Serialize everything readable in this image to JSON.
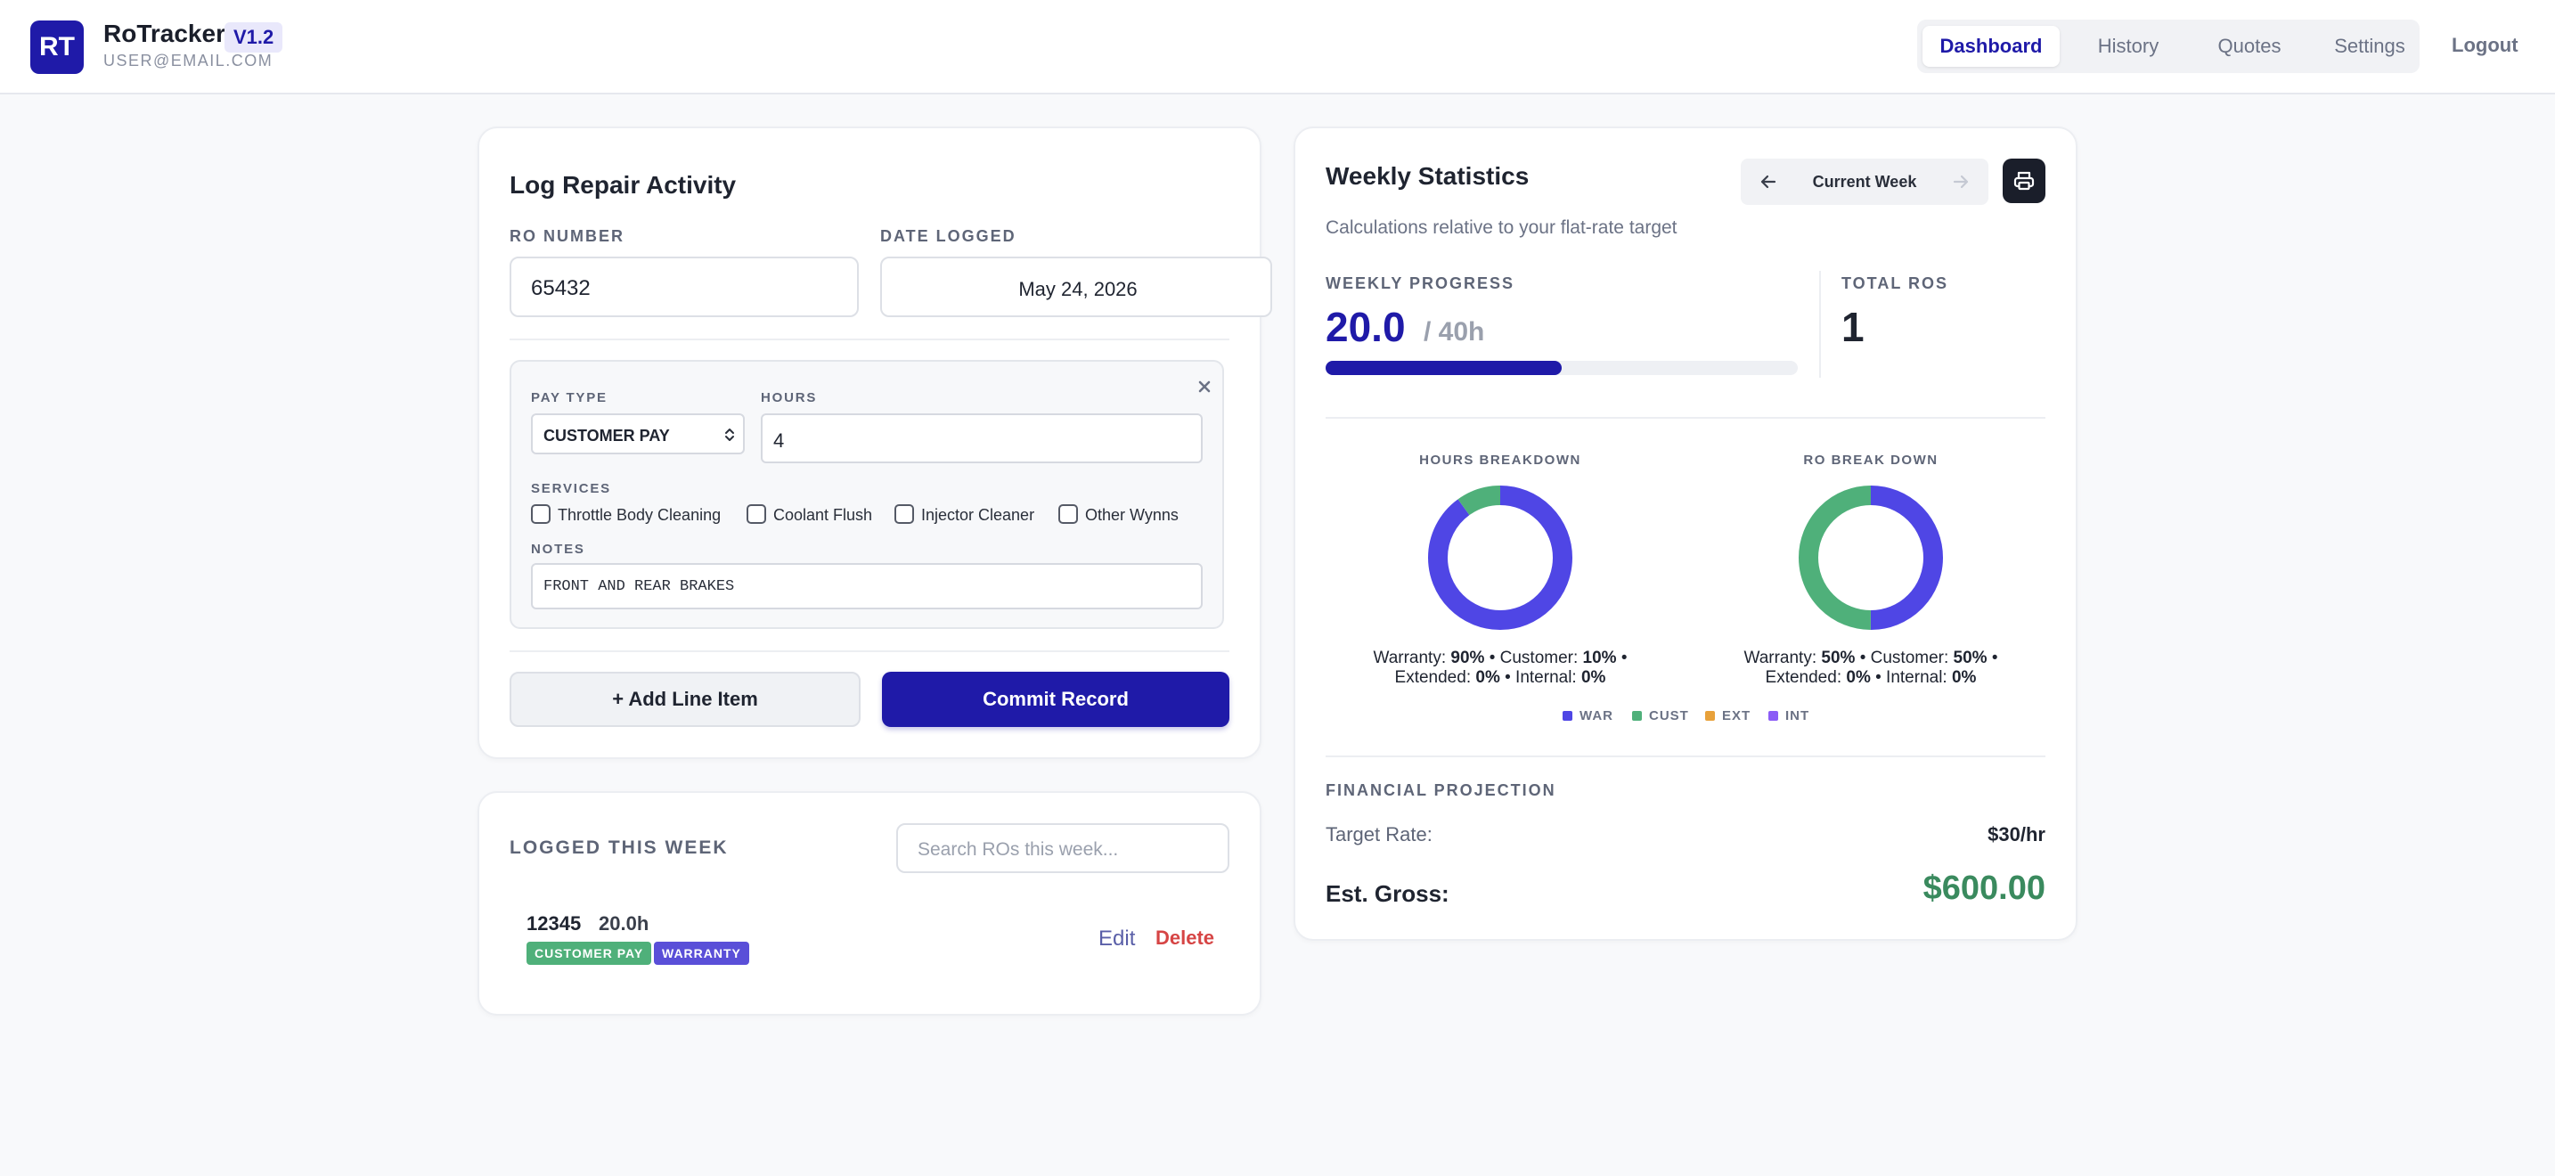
{
  "header": {
    "logo_text": "RT",
    "app_name": "RoTracker",
    "version": "V1.2",
    "user_email": "USER@EMAIL.COM",
    "nav": [
      "Dashboard",
      "History",
      "Quotes",
      "Settings"
    ],
    "active_tab": "Dashboard",
    "logout": "Logout"
  },
  "log_form": {
    "title": "Log Repair Activity",
    "ro_number_label": "RO NUMBER",
    "ro_number_value": "65432",
    "date_label": "DATE LOGGED",
    "date_value": "May 24, 2026",
    "line_item": {
      "pay_type_label": "PAY TYPE",
      "pay_type_value": "CUSTOMER PAY",
      "hours_label": "HOURS",
      "hours_value": "4",
      "services_label": "SERVICES",
      "services": [
        "Throttle Body Cleaning",
        "Coolant Flush",
        "Injector Cleaner",
        "Other Wynns"
      ],
      "notes_label": "NOTES",
      "notes_value": "FRONT AND REAR BRAKES"
    },
    "add_line_label": "+ Add Line Item",
    "commit_label": "Commit Record"
  },
  "logged": {
    "title": "LOGGED THIS WEEK",
    "search_placeholder": "Search ROs this week...",
    "entries": [
      {
        "ro": "12345",
        "hours": "20.0h",
        "badges": [
          "CUSTOMER PAY",
          "WARRANTY"
        ],
        "edit": "Edit",
        "delete": "Delete"
      }
    ]
  },
  "stats": {
    "title": "Weekly Statistics",
    "week_label": "Current Week",
    "subtitle": "Calculations relative to your flat-rate target",
    "progress_label": "WEEKLY PROGRESS",
    "progress_value": "20.0",
    "progress_target": "/ 40h",
    "progress_fraction": 0.5,
    "total_ros_label": "TOTAL ROS",
    "total_ros_value": "1",
    "hours_breakdown": {
      "title": "HOURS BREAKDOWN",
      "segments": [
        {
          "name": "Warranty",
          "pct": 90,
          "color": "#4f46e5"
        },
        {
          "name": "Customer",
          "pct": 10,
          "color": "#4fb07a"
        },
        {
          "name": "Extended",
          "pct": 0,
          "color": "#e8a13a"
        },
        {
          "name": "Internal",
          "pct": 0,
          "color": "#8b5cf6"
        }
      ],
      "line1_prefix": "Warranty: ",
      "line1_a": "90%",
      "line1_mid": " • Customer: ",
      "line1_b": "10%",
      "line1_suffix": " •",
      "line2_prefix": "Extended: ",
      "line2_a": "0%",
      "line2_mid": " • Internal: ",
      "line2_b": "0%"
    },
    "ro_breakdown": {
      "title": "RO BREAK DOWN",
      "segments": [
        {
          "name": "Warranty",
          "pct": 50,
          "color": "#4f46e5"
        },
        {
          "name": "Customer",
          "pct": 50,
          "color": "#4fb07a"
        },
        {
          "name": "Extended",
          "pct": 0,
          "color": "#e8a13a"
        },
        {
          "name": "Internal",
          "pct": 0,
          "color": "#8b5cf6"
        }
      ],
      "line1_prefix": "Warranty: ",
      "line1_a": "50%",
      "line1_mid": " • Customer: ",
      "line1_b": "50%",
      "line1_suffix": " •",
      "line2_prefix": "Extended: ",
      "line2_a": "0%",
      "line2_mid": " • Internal: ",
      "line2_b": "0%"
    },
    "legend": [
      {
        "label": "WAR",
        "color": "#4f46e5"
      },
      {
        "label": "CUST",
        "color": "#4fb07a"
      },
      {
        "label": "EXT",
        "color": "#e8a13a"
      },
      {
        "label": "INT",
        "color": "#8b5cf6"
      }
    ],
    "financial_label": "FINANCIAL PROJECTION",
    "target_rate_label": "Target Rate:",
    "target_rate_value": "$30/hr",
    "est_gross_label": "Est. Gross:",
    "est_gross_value": "$600.00"
  },
  "colors": {
    "brand": "#1f1aa8",
    "accent_indigo": "#4f46e5",
    "green": "#4fb07a",
    "danger": "#d64545",
    "gross_green": "#3a8a5e"
  },
  "icons": [
    "arrow-left-icon",
    "arrow-right-icon",
    "printer-icon",
    "close-icon",
    "select-arrows-icon"
  ]
}
